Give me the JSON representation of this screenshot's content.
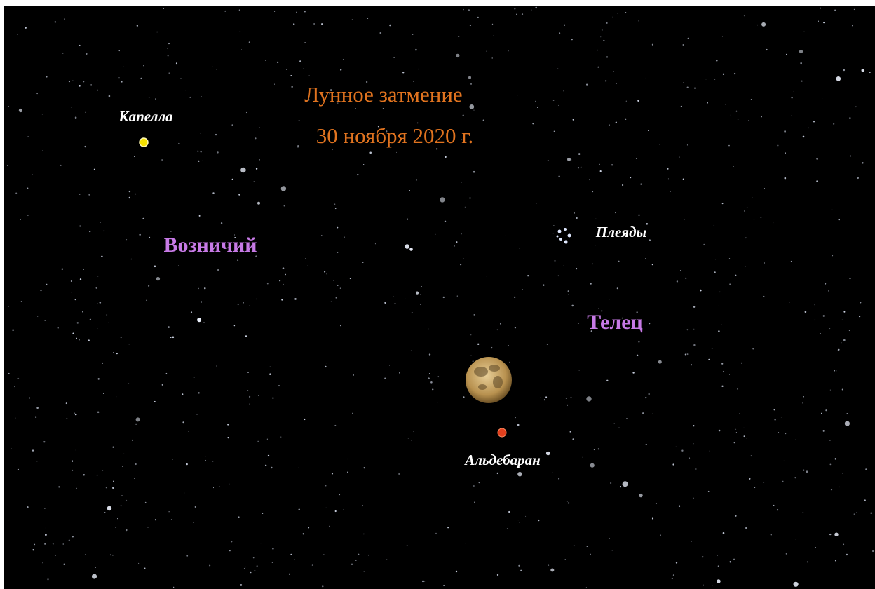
{
  "title": {
    "line1": "Лунное затмение",
    "line2": "30 ноября 2020 г."
  },
  "stars": [
    "Капелла",
    "Плеяды",
    "Альдебаран"
  ],
  "constellations": [
    "Возничий",
    "Телец"
  ]
}
